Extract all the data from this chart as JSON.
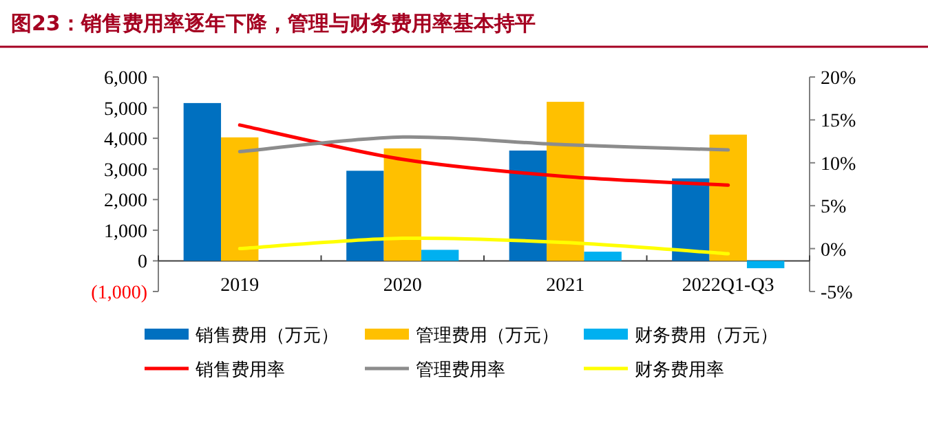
{
  "chart_data": {
    "type": "bar",
    "title": "图23：销售费用率逐年下降，管理与财务费用率基本持平",
    "categories": [
      "2019",
      "2020",
      "2021",
      "2022Q1-Q3"
    ],
    "series": [
      {
        "name": "销售费用（万元）",
        "color": "#0070c0",
        "values": [
          5150,
          2940,
          3600,
          2690
        ]
      },
      {
        "name": "管理费用（万元）",
        "color": "#ffc000",
        "values": [
          4030,
          3670,
          5190,
          4120
        ]
      },
      {
        "name": "财务费用（万元）",
        "color": "#00b0f0",
        "values": [
          null,
          360,
          300,
          -240
        ]
      },
      {
        "name": "销售费用率",
        "type": "line",
        "axis": "y2",
        "color": "#ff0000",
        "values": [
          14.4,
          10.4,
          8.4,
          7.4
        ]
      },
      {
        "name": "管理费用率",
        "type": "line",
        "axis": "y2",
        "color": "#8c8c8c",
        "values": [
          11.3,
          13.0,
          12.1,
          11.5
        ]
      },
      {
        "name": "财务费用率",
        "type": "line",
        "axis": "y2",
        "color": "#ffff00",
        "values": [
          0.0,
          1.2,
          0.7,
          -0.6
        ]
      }
    ],
    "ylim": [
      -1000,
      6000
    ],
    "yticks": [
      {
        "value": -1000,
        "label": "(1,000)"
      },
      {
        "value": 0,
        "label": "0"
      },
      {
        "value": 1000,
        "label": "1,000"
      },
      {
        "value": 2000,
        "label": "2,000"
      },
      {
        "value": 3000,
        "label": "3,000"
      },
      {
        "value": 4000,
        "label": "4,000"
      },
      {
        "value": 5000,
        "label": "5,000"
      },
      {
        "value": 6000,
        "label": "6,000"
      }
    ],
    "y2lim": [
      -5,
      20
    ],
    "y2ticks": [
      {
        "value": -5,
        "label": "-5%"
      },
      {
        "value": 0,
        "label": "0%"
      },
      {
        "value": 5,
        "label": "5%"
      },
      {
        "value": 10,
        "label": "10%"
      },
      {
        "value": 15,
        "label": "15%"
      },
      {
        "value": 20,
        "label": "20%"
      }
    ],
    "grid": false,
    "legend": "bottom"
  }
}
